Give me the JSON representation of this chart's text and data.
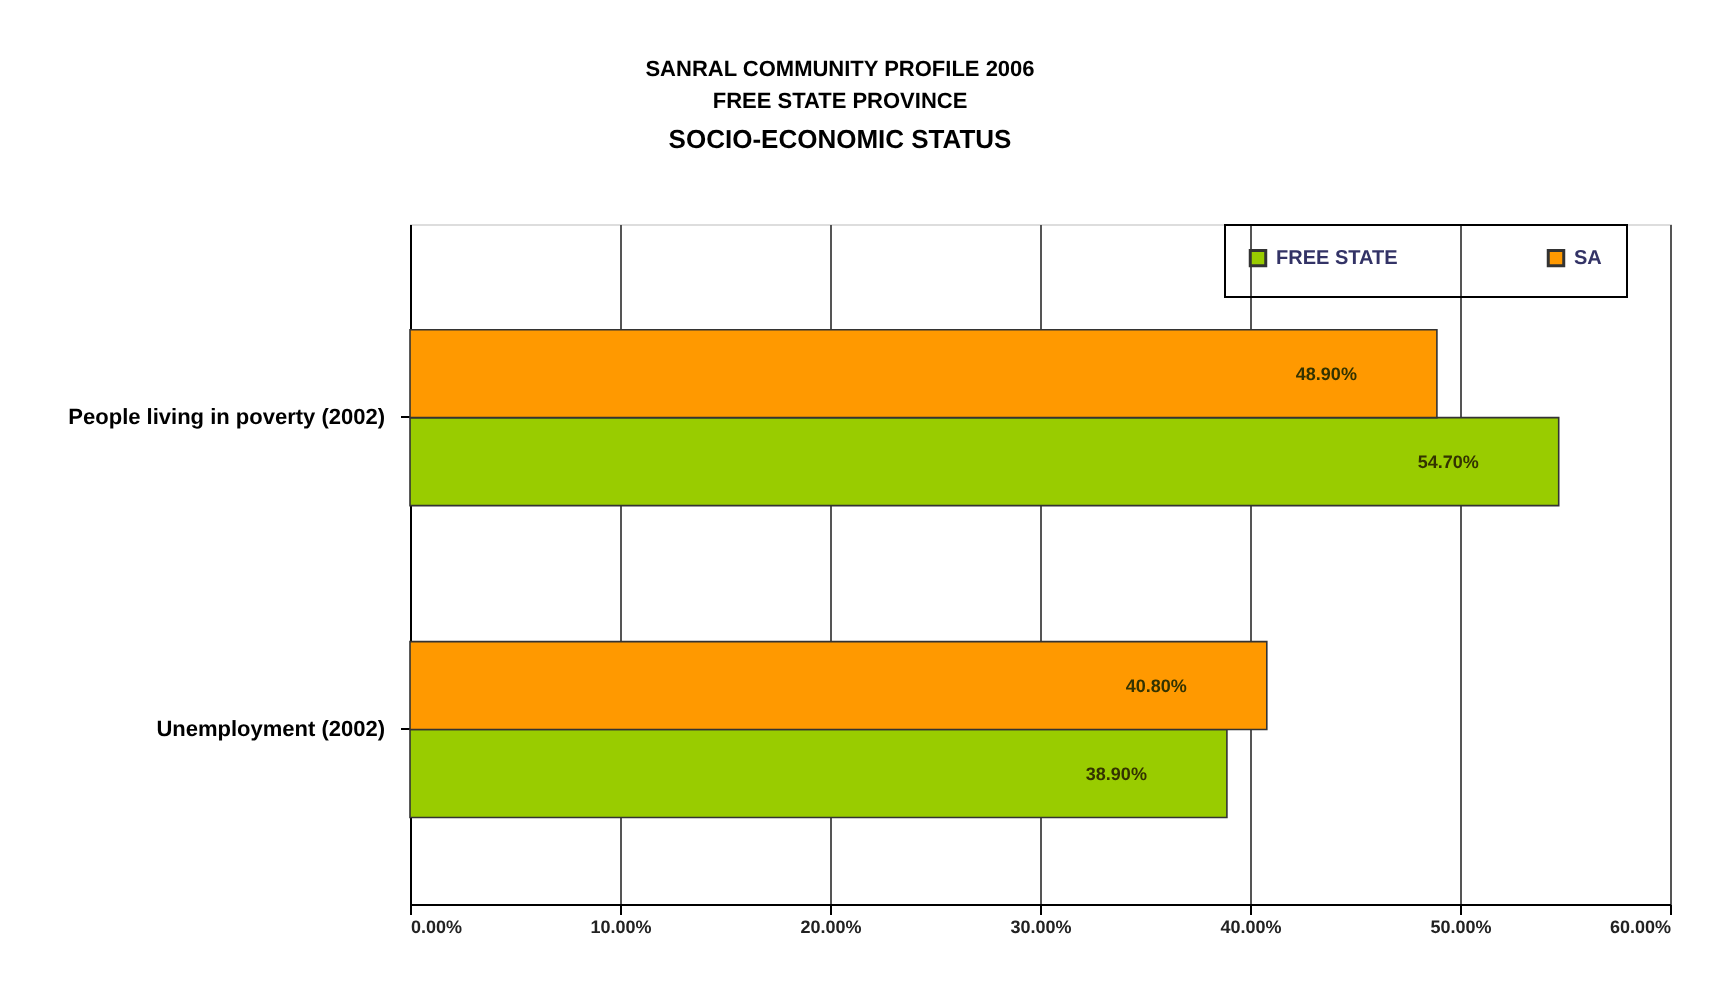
{
  "chart_data": {
    "type": "bar",
    "orientation": "horizontal",
    "title": "SOCIO-ECONOMIC STATUS",
    "subtitle": "SANRAL COMMUNITY PROFILE 2006\nFREE STATE PROVINCE",
    "categories": [
      "People living in poverty (2002)",
      "Unemployment (2002)"
    ],
    "series": [
      {
        "name": "FREE STATE",
        "color": "#99cc00",
        "values": [
          54.7,
          38.9
        ],
        "value_labels": [
          "54.70%",
          "38.90%"
        ]
      },
      {
        "name": "SA",
        "color": "#ff9900",
        "values": [
          48.9,
          40.8
        ],
        "value_labels": [
          "48.90%",
          "40.80%"
        ]
      }
    ],
    "xlim": [
      0,
      60
    ],
    "xticks": [
      {
        "value": 0,
        "label": "0.00%"
      },
      {
        "value": 10,
        "label": "10.00%"
      },
      {
        "value": 20,
        "label": "20.00%"
      },
      {
        "value": 30,
        "label": "30.00%"
      },
      {
        "value": 40,
        "label": "40.00%"
      },
      {
        "value": 50,
        "label": "50.00%"
      },
      {
        "value": 60,
        "label": "60.00%"
      }
    ],
    "grid": "x",
    "legend": "top right"
  }
}
